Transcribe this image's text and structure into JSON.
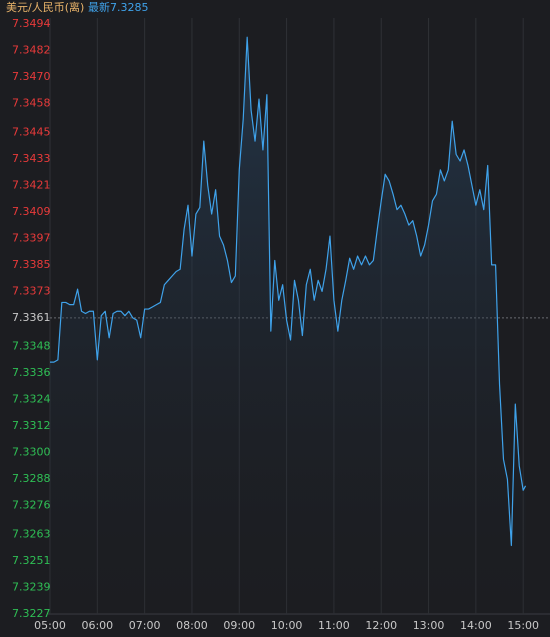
{
  "chart_data": {
    "type": "line",
    "title": "美元/人民币(离)",
    "latest_label": "最新",
    "latest": 7.3285,
    "reference": 7.3361,
    "up_color": "#e83a3a",
    "down_color": "#2fbf55",
    "reference_color": "#c8c8c8",
    "grid": true,
    "xlim": [
      "05:00",
      "15:34"
    ],
    "xticks": [
      "05:00",
      "06:00",
      "07:00",
      "08:00",
      "09:00",
      "10:00",
      "11:00",
      "12:00",
      "13:00",
      "14:00",
      "15:00"
    ],
    "ylim": [
      7.3227,
      7.3494
    ],
    "yticks": [
      7.3494,
      7.3482,
      {
        "value": 7.347,
        "label": "7.3470"
      },
      7.3458,
      7.3445,
      7.3433,
      7.3421,
      7.3409,
      7.3397,
      7.3385,
      7.3373,
      7.3361,
      7.3348,
      7.3336,
      7.3324,
      7.3312,
      {
        "value": 7.33,
        "label": "7.3300"
      },
      7.3288,
      7.3276,
      7.3263,
      7.3251,
      7.3239,
      7.3227
    ],
    "x": [
      "05:00",
      "05:05",
      "05:10",
      "05:15",
      "05:20",
      "05:25",
      "05:30",
      "05:35",
      "05:40",
      "05:45",
      "05:50",
      "05:55",
      "06:00",
      "06:05",
      "06:10",
      "06:15",
      "06:20",
      "06:25",
      "06:30",
      "06:35",
      "06:40",
      "06:45",
      "06:50",
      "06:55",
      "07:00",
      "07:05",
      "07:10",
      "07:15",
      "07:20",
      "07:25",
      "07:30",
      "07:35",
      "07:40",
      "07:45",
      "07:50",
      "07:55",
      "08:00",
      "08:05",
      "08:10",
      "08:15",
      "08:20",
      "08:25",
      "08:30",
      "08:35",
      "08:40",
      "08:45",
      "08:50",
      "08:55",
      "09:00",
      "09:05",
      "09:10",
      "09:15",
      "09:20",
      "09:25",
      "09:30",
      "09:35",
      "09:40",
      "09:45",
      "09:50",
      "09:55",
      "10:00",
      "10:05",
      "10:10",
      "10:15",
      "10:20",
      "10:25",
      "10:30",
      "10:35",
      "10:40",
      "10:45",
      "10:50",
      "10:55",
      "11:00",
      "11:05",
      "11:10",
      "11:15",
      "11:20",
      "11:25",
      "11:30",
      "11:35",
      "11:40",
      "11:45",
      "11:50",
      "11:55",
      "12:00",
      "12:05",
      "12:10",
      "12:15",
      "12:20",
      "12:25",
      "12:30",
      "12:35",
      "12:40",
      "12:45",
      "12:50",
      "12:55",
      "13:00",
      "13:05",
      "13:10",
      "13:15",
      "13:20",
      "13:25",
      "13:30",
      "13:35",
      "13:40",
      "13:45",
      "13:50",
      "13:55",
      "14:00",
      "14:05",
      "14:10",
      "14:15",
      "14:20",
      "14:25",
      "14:30",
      "14:35",
      "14:40",
      "14:45",
      "14:50",
      "14:55",
      "15:00",
      "15:03"
    ],
    "series": [
      {
        "color": "#3fa2ea",
        "values": [
          7.3341,
          7.3341,
          7.3342,
          7.3368,
          7.3368,
          7.3367,
          7.3367,
          7.3374,
          7.3364,
          7.3363,
          7.3364,
          7.3364,
          7.3342,
          7.3362,
          7.3364,
          7.3352,
          7.3363,
          7.3364,
          7.3364,
          7.3362,
          7.3364,
          7.3361,
          7.336,
          7.3352,
          7.3365,
          7.3365,
          7.3366,
          7.3367,
          7.3368,
          7.3376,
          7.3378,
          7.338,
          7.3382,
          7.3383,
          7.3401,
          7.3412,
          7.3389,
          7.3408,
          7.3411,
          7.3441,
          7.3421,
          7.3408,
          7.3419,
          7.3398,
          7.3394,
          7.3387,
          7.3377,
          7.338,
          7.3428,
          7.3451,
          7.3488,
          7.3455,
          7.3441,
          7.346,
          7.3437,
          7.3462,
          7.3355,
          7.3387,
          7.3369,
          7.3376,
          7.336,
          7.3351,
          7.3378,
          7.3369,
          7.3353,
          7.3376,
          7.3383,
          7.3369,
          7.3378,
          7.3373,
          7.3383,
          7.3398,
          7.3369,
          7.3355,
          7.3369,
          7.3378,
          7.3388,
          7.3383,
          7.3389,
          7.3385,
          7.3389,
          7.3385,
          7.3387,
          7.3401,
          7.3414,
          7.3426,
          7.3423,
          7.3417,
          7.341,
          7.3412,
          7.3408,
          7.3403,
          7.3405,
          7.3398,
          7.3389,
          7.3394,
          7.3403,
          7.3414,
          7.3417,
          7.3428,
          7.3423,
          7.3428,
          7.345,
          7.3435,
          7.3432,
          7.3437,
          7.343,
          7.3421,
          7.3412,
          7.3419,
          7.341,
          7.343,
          7.3385,
          7.3385,
          7.3331,
          7.3297,
          7.3288,
          7.3258,
          7.3322,
          7.3294,
          7.3283,
          7.3285
        ]
      }
    ]
  }
}
